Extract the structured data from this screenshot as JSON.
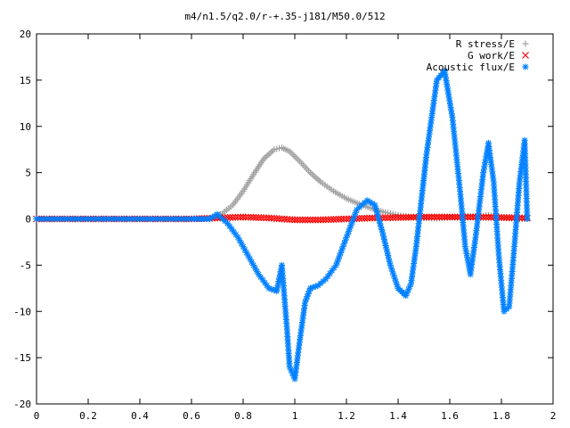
{
  "chart_data": {
    "type": "scatter",
    "title": "m4/n1.5/q2.0/r-+.35-j181/M50.0/512",
    "xlabel": "",
    "ylabel": "",
    "xlim": [
      0,
      2
    ],
    "ylim": [
      -20,
      20
    ],
    "xticks": [
      "0",
      "0.2",
      "0.4",
      "0.6",
      "0.8",
      "1",
      "1.2",
      "1.4",
      "1.6",
      "1.8",
      "2"
    ],
    "yticks": [
      "20",
      "15",
      "10",
      "5",
      "0",
      "-5",
      "-10",
      "-15",
      "-20"
    ],
    "grid": false,
    "legend_position": "top-right",
    "series": [
      {
        "name": "R stress/E",
        "marker": "plus",
        "color": "#a0a0a0",
        "x": [
          0.0,
          0.2,
          0.4,
          0.6,
          0.68,
          0.72,
          0.76,
          0.8,
          0.84,
          0.88,
          0.92,
          0.95,
          0.98,
          1.02,
          1.06,
          1.1,
          1.15,
          1.2,
          1.25,
          1.3,
          1.35,
          1.4,
          1.45,
          1.5,
          1.55,
          1.6,
          1.65,
          1.7,
          1.75,
          1.8,
          1.85,
          1.9
        ],
        "y": [
          0.0,
          0.0,
          0.0,
          0.0,
          0.1,
          0.6,
          1.5,
          3.0,
          4.8,
          6.5,
          7.5,
          7.7,
          7.3,
          6.2,
          5.0,
          4.0,
          3.0,
          2.2,
          1.6,
          1.1,
          0.7,
          0.4,
          0.2,
          0.1,
          0.05,
          0.2,
          0.3,
          0.3,
          0.4,
          0.2,
          0.0,
          0.0
        ]
      },
      {
        "name": "G work/E",
        "marker": "cross",
        "color": "#ff0000",
        "x": [
          0.0,
          0.2,
          0.4,
          0.6,
          0.7,
          0.8,
          0.9,
          1.0,
          1.1,
          1.2,
          1.3,
          1.4,
          1.5,
          1.6,
          1.7,
          1.8,
          1.9
        ],
        "y": [
          0.0,
          0.0,
          0.0,
          0.0,
          0.1,
          0.2,
          0.1,
          -0.1,
          -0.1,
          0.0,
          0.1,
          0.15,
          0.2,
          0.2,
          0.2,
          0.15,
          0.1
        ]
      },
      {
        "name": "Acoustic flux/E",
        "marker": "star",
        "color": "#0080ff",
        "x": [
          0.0,
          0.2,
          0.4,
          0.6,
          0.67,
          0.7,
          0.74,
          0.78,
          0.82,
          0.86,
          0.9,
          0.93,
          0.95,
          0.97,
          0.98,
          1.0,
          1.02,
          1.04,
          1.06,
          1.09,
          1.12,
          1.16,
          1.2,
          1.24,
          1.28,
          1.31,
          1.34,
          1.37,
          1.4,
          1.43,
          1.45,
          1.47,
          1.49,
          1.51,
          1.53,
          1.55,
          1.58,
          1.61,
          1.64,
          1.66,
          1.68,
          1.7,
          1.73,
          1.75,
          1.77,
          1.79,
          1.81,
          1.83,
          1.85,
          1.87,
          1.89,
          1.9
        ],
        "y": [
          0.0,
          0.0,
          0.0,
          0.0,
          0.0,
          0.5,
          -0.5,
          -2.0,
          -4.0,
          -6.0,
          -7.5,
          -7.8,
          -5.0,
          -12.0,
          -16.0,
          -17.3,
          -13.0,
          -9.0,
          -7.5,
          -7.2,
          -6.5,
          -5.0,
          -2.0,
          1.0,
          2.0,
          1.5,
          -1.5,
          -5.0,
          -7.5,
          -8.3,
          -7.0,
          -3.0,
          2.0,
          7.0,
          11.0,
          15.0,
          16.0,
          11.0,
          3.0,
          -3.0,
          -6.0,
          -2.0,
          5.0,
          8.2,
          4.0,
          -4.0,
          -10.0,
          -9.5,
          -3.0,
          4.0,
          8.5,
          0.0
        ]
      }
    ]
  }
}
